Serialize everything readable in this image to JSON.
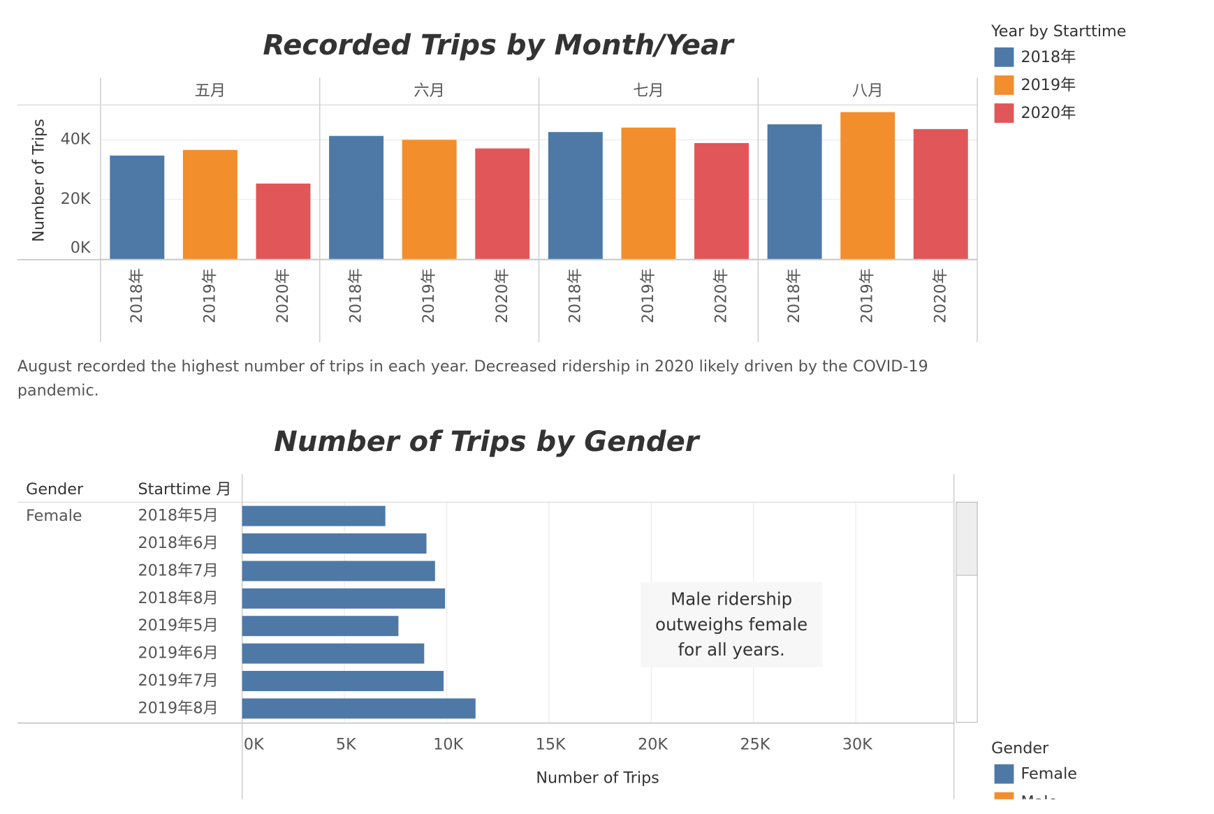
{
  "chart_data": [
    {
      "type": "bar",
      "orientation": "vertical",
      "title": "Recorded Trips by Month/Year",
      "categories": [
        "五月",
        "六月",
        "七月",
        "八月"
      ],
      "series": [
        {
          "name": "2018年",
          "color": "#4e79a7",
          "values": [
            34700,
            41300,
            42600,
            45200
          ]
        },
        {
          "name": "2019年",
          "color": "#f28e2b",
          "values": [
            36600,
            40000,
            44100,
            49300
          ]
        },
        {
          "name": "2020年",
          "color": "#e15759",
          "values": [
            25300,
            37100,
            38900,
            43600
          ]
        }
      ],
      "y_label": "Number of Trips",
      "ylim": [
        0,
        51700
      ],
      "yticks": [
        {
          "value": 0,
          "label": "0K"
        },
        {
          "value": 20000,
          "label": "20K"
        },
        {
          "value": 40000,
          "label": "40K"
        }
      ],
      "grid": true,
      "legend": {
        "title": "Year by Starttime",
        "position": "right"
      },
      "caption": [
        "August recorded the highest number of trips in each year. Decreased ridership in 2020 likely driven by the COVID-19",
        "pandemic."
      ]
    },
    {
      "type": "bar",
      "orientation": "horizontal",
      "title": "Number of Trips by Gender",
      "row_headers": [
        "Gender",
        "Starttime 月"
      ],
      "group": "Female",
      "categories": [
        "2018年5月",
        "2018年6月",
        "2018年7月",
        "2018年8月",
        "2019年5月",
        "2019年6月",
        "2019年7月",
        "2019年8月"
      ],
      "series": [
        {
          "name": "Female",
          "color": "#4e79a7",
          "values": [
            7000,
            9010,
            9430,
            9920,
            7640,
            8900,
            9850,
            11410
          ]
        }
      ],
      "x_label": "Number of Trips",
      "xlim": [
        0,
        34800
      ],
      "xticks": [
        {
          "value": 0,
          "label": "0K"
        },
        {
          "value": 5000,
          "label": "5K"
        },
        {
          "value": 10000,
          "label": "10K"
        },
        {
          "value": 15000,
          "label": "15K"
        },
        {
          "value": 20000,
          "label": "20K"
        },
        {
          "value": 25000,
          "label": "25K"
        },
        {
          "value": 30000,
          "label": "30K"
        }
      ],
      "grid": true,
      "annotation": [
        "Male ridership",
        "outweighs female",
        "for all years."
      ],
      "legend": {
        "title": "Gender",
        "position": "right",
        "items": [
          {
            "name": "Female",
            "color": "#4e79a7"
          },
          {
            "name": "Male",
            "color": "#f28e2b"
          }
        ]
      }
    }
  ]
}
